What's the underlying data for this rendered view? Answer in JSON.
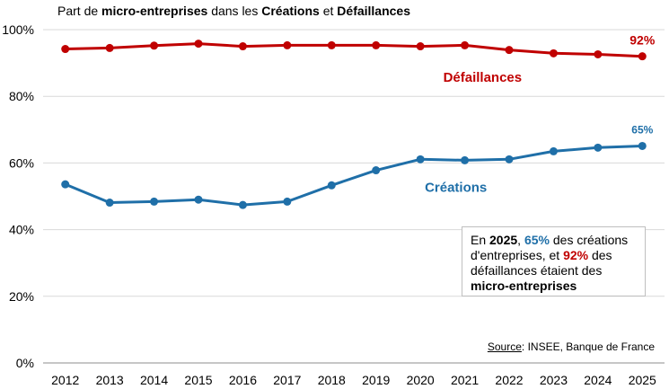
{
  "title": {
    "p1": "Part de ",
    "b1": "micro-entreprises",
    "p2": " dans les ",
    "b2": "Créations",
    "p3": " et ",
    "b3": "Défaillances"
  },
  "note": {
    "p1": "En ",
    "year": "2025",
    "p2": ", ",
    "creations_pct": "65%",
    "p3": " des créations d'entreprises, et ",
    "defaillances_pct": "92%",
    "p4": " des défaillances étaient des ",
    "bold_end": "micro-entreprises"
  },
  "source": {
    "label": "Source",
    "text": ": INSEE, Banque de France"
  },
  "colors": {
    "defaillances": "#c00000",
    "creations": "#1f6fa8",
    "grid": "#d9d9d9"
  },
  "chart_data": {
    "type": "line",
    "title": "Part de micro-entreprises dans les Créations et Défaillances",
    "categories": [
      "2012",
      "2013",
      "2014",
      "2015",
      "2016",
      "2017",
      "2018",
      "2019",
      "2020",
      "2021",
      "2022",
      "2023",
      "2024",
      "2025"
    ],
    "ylim": [
      0,
      100
    ],
    "yticks": [
      0,
      20,
      40,
      60,
      80,
      100
    ],
    "ytick_labels": [
      "0%",
      "20%",
      "40%",
      "60%",
      "80%",
      "100%"
    ],
    "grid": true,
    "series": [
      {
        "name": "Défaillances",
        "color": "#c00000",
        "values": [
          94.2,
          94.5,
          95.2,
          95.8,
          95.0,
          95.3,
          95.3,
          95.3,
          95.0,
          95.3,
          93.9,
          92.9,
          92.6,
          92.0
        ],
        "end_label": "92%"
      },
      {
        "name": "Créations",
        "color": "#1f6fa8",
        "values": [
          53.6,
          48.1,
          48.4,
          49.0,
          47.4,
          48.4,
          53.3,
          57.8,
          61.1,
          60.8,
          61.1,
          63.5,
          64.6,
          65.1
        ],
        "end_label": "65%"
      }
    ]
  }
}
